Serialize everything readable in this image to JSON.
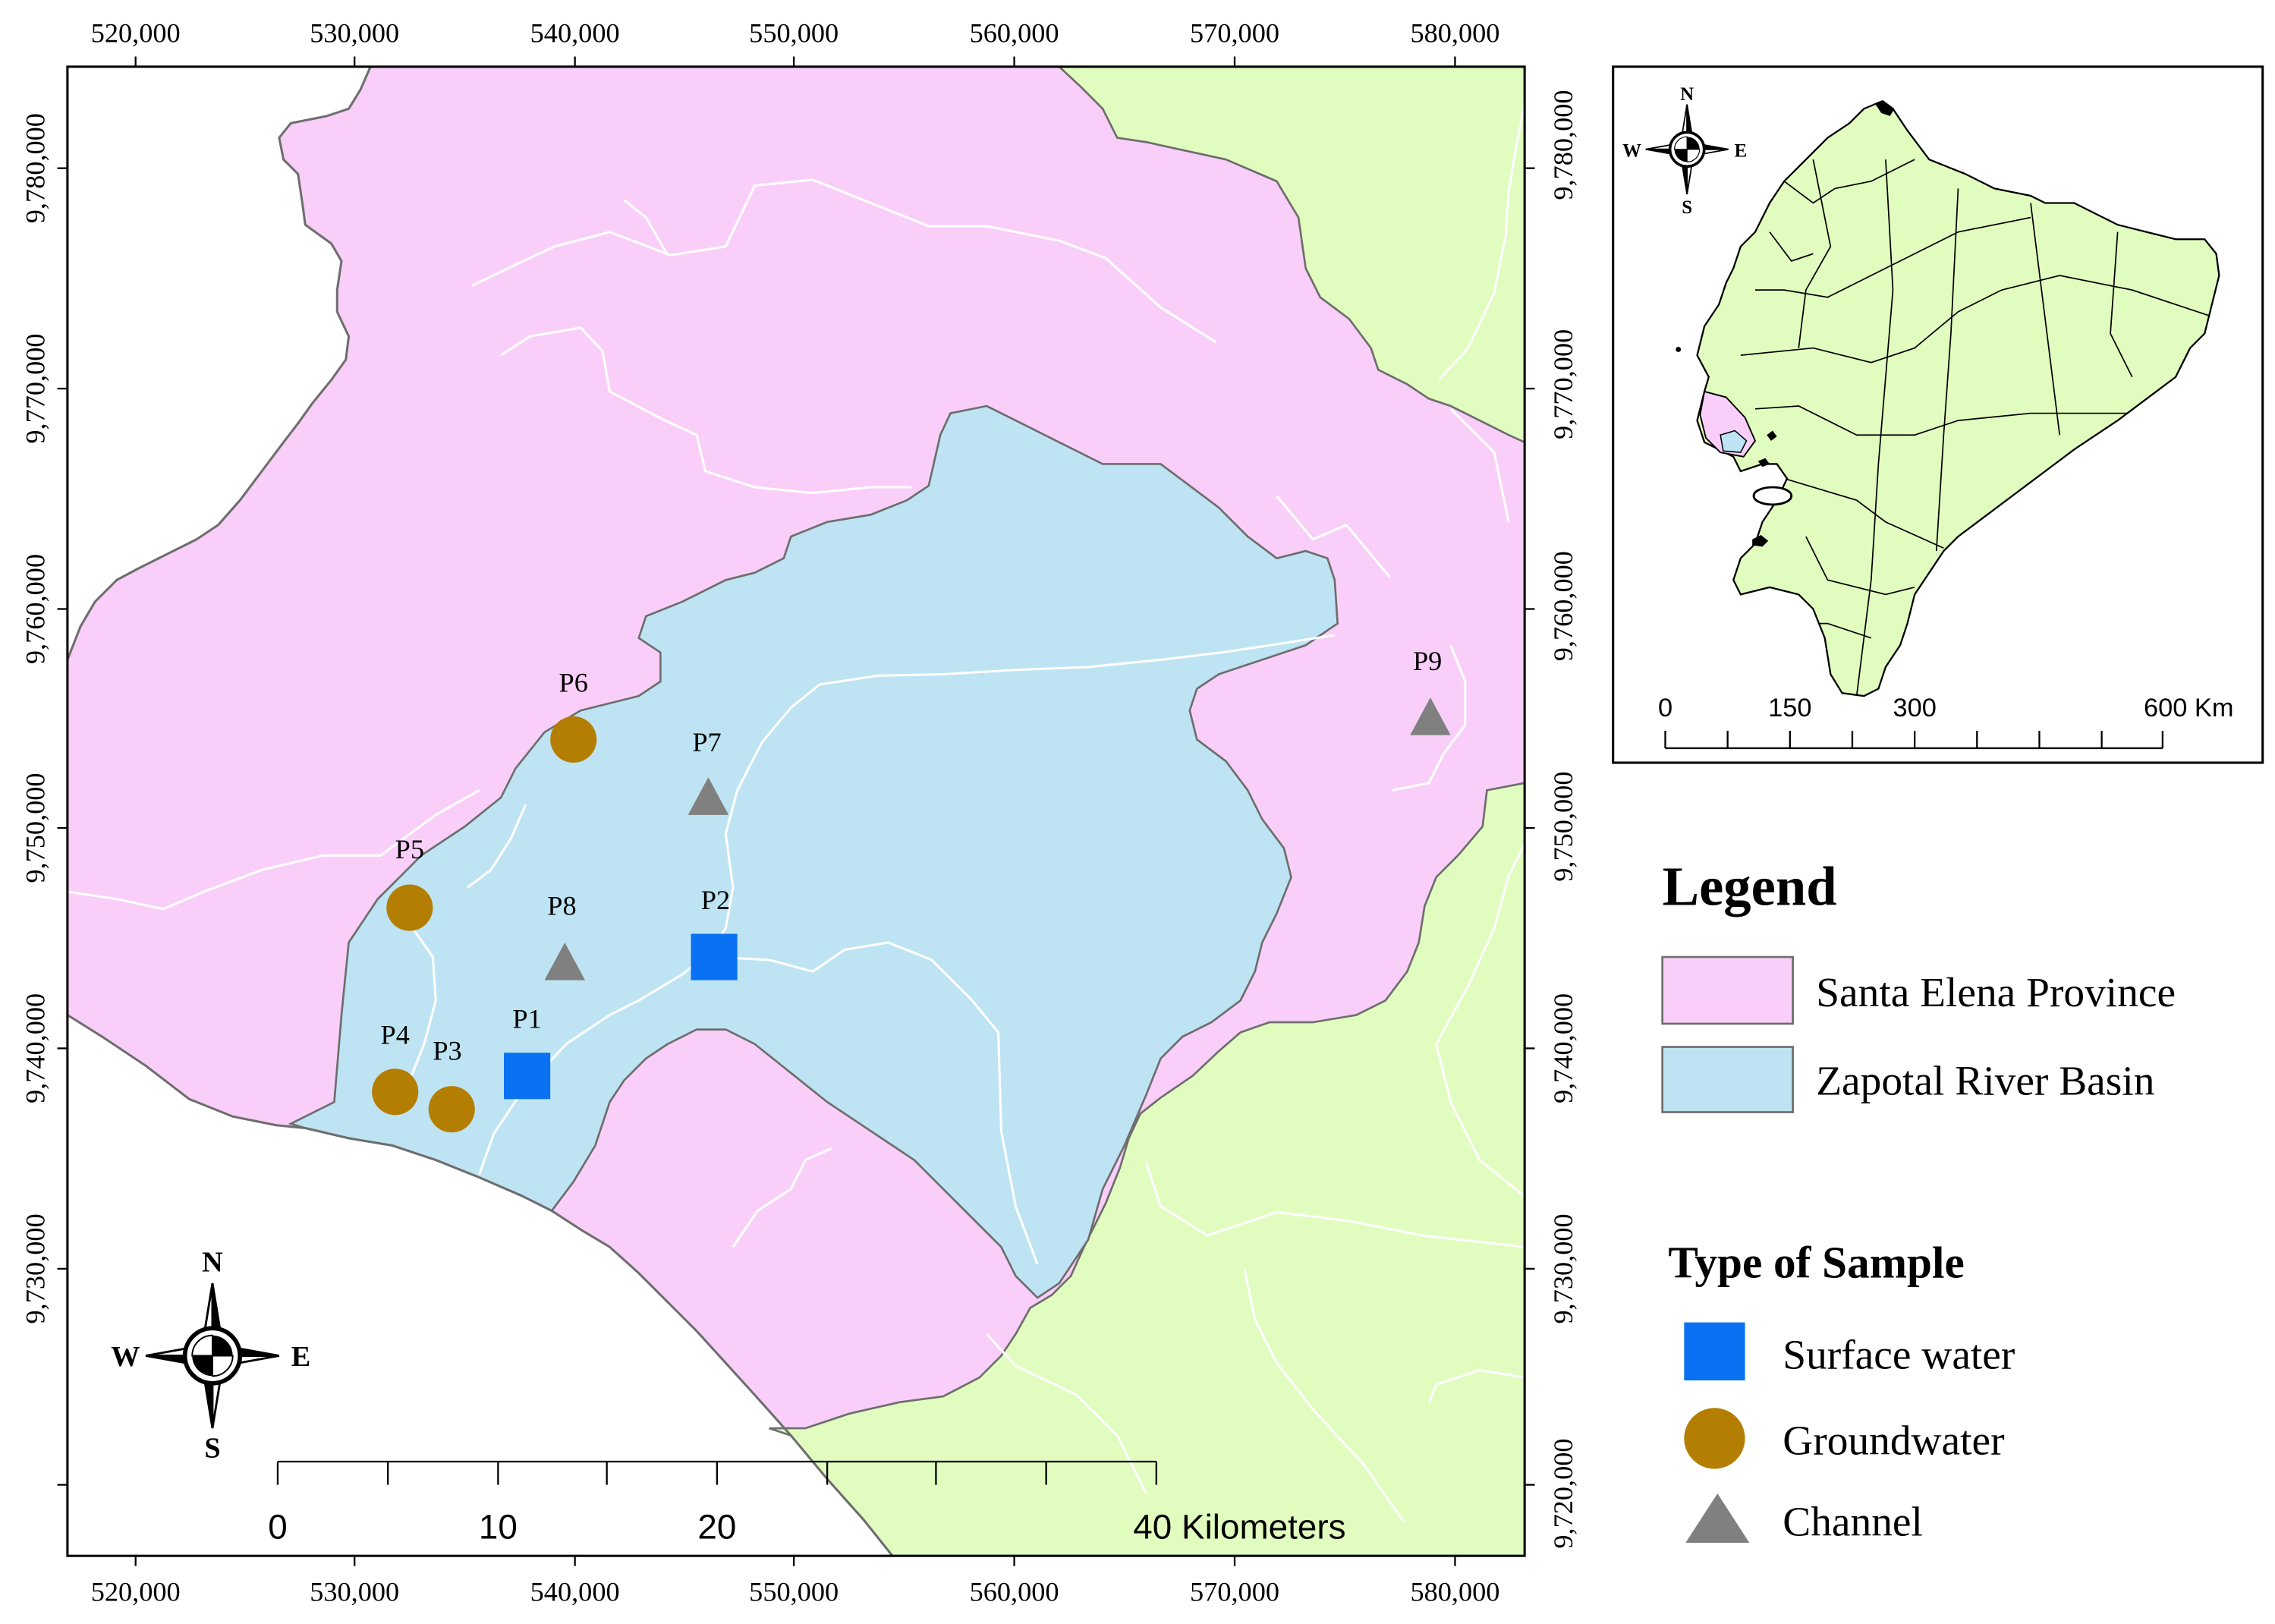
{
  "axes": {
    "top_ticks": [
      "520,000",
      "530,000",
      "540,000",
      "550,000",
      "560,000",
      "570,000",
      "580,000"
    ],
    "bottom_ticks": [
      "520,000",
      "530,000",
      "540,000",
      "550,000",
      "560,000",
      "570,000",
      "580,000"
    ],
    "left_ticks": [
      "9,780,000",
      "9,770,000",
      "9,760,000",
      "9,750,000",
      "9,740,000",
      "9,730,000"
    ],
    "right_ticks": [
      "9,780,000",
      "9,770,000",
      "9,760,000",
      "9,750,000",
      "9,740,000",
      "9,730,000",
      "9,720,000"
    ]
  },
  "map": {
    "neighbor_color": "#e1fcbf",
    "ocean_color": "#ffffff",
    "coastline_color": "#6e6e6e",
    "river_color": "#ffffff"
  },
  "sample_types": [
    {
      "label": "Surface water",
      "marker": "square",
      "color": "#0a72f2",
      "samples": [
        "P1",
        "P2"
      ]
    },
    {
      "label": "Groundwater",
      "marker": "circle",
      "color": "#b47e02",
      "samples": [
        "P3",
        "P4",
        "P5",
        "P6"
      ]
    },
    {
      "label": "Channel",
      "marker": "triangle",
      "color": "#808080",
      "samples": [
        "P7",
        "P8",
        "P9"
      ]
    }
  ],
  "scale_bar": {
    "labels": [
      "0",
      "10",
      "20",
      "40 Kilometers"
    ]
  },
  "compass": {
    "n": "N",
    "s": "S",
    "e": "E",
    "w": "W"
  },
  "inset": {
    "land_color": "#e1fcbf",
    "compass": {
      "n": "N",
      "s": "S",
      "e": "E",
      "w": "W"
    },
    "scale_labels": [
      "0",
      "150",
      "300",
      "600 Km"
    ]
  },
  "legend": {
    "title": "Legend",
    "areas": [
      {
        "label": "Santa Elena Province",
        "color": "#f9cff9"
      },
      {
        "label": "Zapotal River Basin",
        "color": "#bee4f4"
      }
    ],
    "sample_title": "Type of Sample"
  }
}
